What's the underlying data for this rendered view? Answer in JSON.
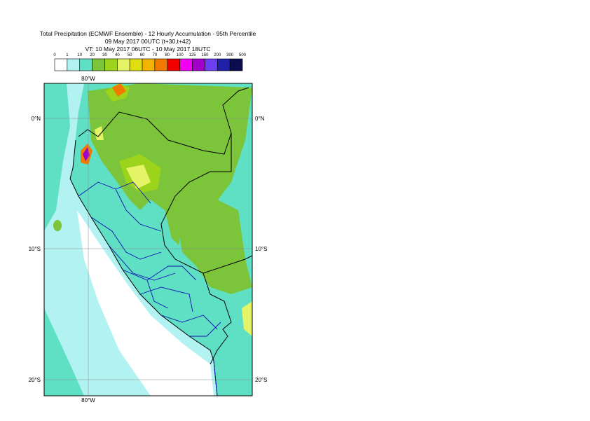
{
  "header": {
    "title": "Total Precipitation (ECMWF Ensemble) - 12 Hourly Accumulation - 95th Percentile",
    "subtitle": "09 May 2017 00UTC (t+30,t+42)",
    "valid_time": "VT: 10 May 2017 06UTC - 10 May 2017 18UTC"
  },
  "legend": {
    "labels": [
      0,
      1,
      10,
      20,
      30,
      40,
      50,
      60,
      70,
      80,
      100,
      125,
      150,
      200,
      300,
      500
    ],
    "colors": [
      "#ffffff",
      "#b2f2f2",
      "#5fe0c4",
      "#7cc43a",
      "#9cd41c",
      "#e4f466",
      "#dede10",
      "#f2b400",
      "#f27800",
      "#f20000",
      "#f200f2",
      "#a000c8",
      "#6c40f0",
      "#2020a8",
      "#0c0c50"
    ]
  },
  "map": {
    "lat_labels": [
      "0°N",
      "10°S",
      "20°S"
    ],
    "lon_label": "80°W"
  }
}
